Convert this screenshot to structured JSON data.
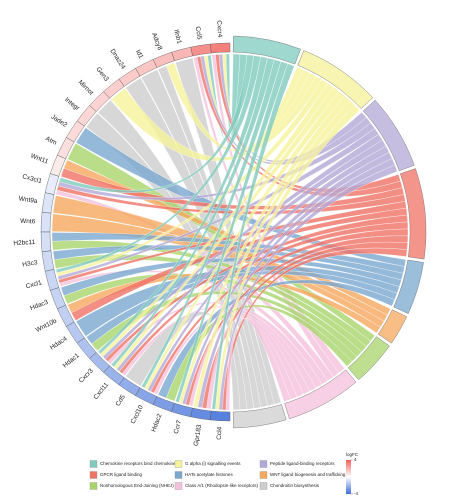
{
  "chart_data": {
    "type": "chord",
    "genes": [
      "Cxcr4",
      "Ccl5",
      "Ifnb1",
      "Adcy8",
      "Id1",
      "Dnaz24",
      "Gen3",
      "Mirnot",
      "Integr",
      "Jade2",
      "Atm",
      "Wnt11",
      "Cx3cl1",
      "Wnt9a",
      "Wnt6",
      "H2bc11",
      "H3c3",
      "Cxcl1",
      "Hdac3",
      "Wnt10b",
      "Hdac4",
      "Hdac1",
      "Cxcr3",
      "Cxcl11",
      "Cd5",
      "Cxcl10",
      "Hdac2",
      "Ccr7",
      "Gpr183",
      "Ccl4"
    ],
    "values": [
      3.2,
      2.8,
      1.8,
      1.6,
      1.4,
      1.3,
      1.2,
      1.1,
      1,
      0.9,
      0.8,
      0.5,
      -0.5,
      -0.7,
      -0.8,
      -0.9,
      -1,
      -1.1,
      -1.2,
      -1.3,
      -1.5,
      -1.7,
      -1.9,
      -2.1,
      -2.3,
      -2.5,
      -2.7,
      -2.9,
      -3.2,
      -3.5
    ],
    "pathways": [
      {
        "name": "Chemokine receptors bind chemokines",
        "color": "#7fcbbd"
      },
      {
        "name": "G alpha (i) signalling events",
        "color": "#f6f29a"
      },
      {
        "name": "Peptide ligand-binding receptors",
        "color": "#b3a8d6"
      },
      {
        "name": "GPCR ligand binding",
        "color": "#f07265"
      },
      {
        "name": "HATs acetylate histones",
        "color": "#7aa8cf"
      },
      {
        "name": "WNT ligand biogenesis and trafficking",
        "color": "#f6a85e"
      },
      {
        "name": "Nonhomologous End-Joining (NHEJ)",
        "color": "#a8d46a"
      },
      {
        "name": "Class A/1 (Rhodopsin-like receptors)",
        "color": "#f4c0dc"
      },
      {
        "name": "Chondroitin biosynthesis",
        "color": "#cdcdcd"
      }
    ],
    "links": [
      [
        0,
        0
      ],
      [
        0,
        1
      ],
      [
        0,
        2
      ],
      [
        0,
        3
      ],
      [
        0,
        7
      ],
      [
        1,
        0
      ],
      [
        1,
        1
      ],
      [
        1,
        2
      ],
      [
        1,
        3
      ],
      [
        1,
        7
      ],
      [
        2,
        8
      ],
      [
        3,
        1
      ],
      [
        3,
        8
      ],
      [
        4,
        8
      ],
      [
        5,
        8
      ],
      [
        6,
        1
      ],
      [
        7,
        8
      ],
      [
        8,
        8
      ],
      [
        9,
        4
      ],
      [
        10,
        6
      ],
      [
        11,
        5
      ],
      [
        11,
        3
      ],
      [
        12,
        0
      ],
      [
        12,
        2
      ],
      [
        12,
        3
      ],
      [
        12,
        7
      ],
      [
        13,
        5
      ],
      [
        14,
        5
      ],
      [
        15,
        4
      ],
      [
        15,
        6
      ],
      [
        16,
        4
      ],
      [
        16,
        6
      ],
      [
        17,
        0
      ],
      [
        17,
        1
      ],
      [
        17,
        2
      ],
      [
        17,
        3
      ],
      [
        17,
        7
      ],
      [
        18,
        4
      ],
      [
        18,
        6
      ],
      [
        19,
        5
      ],
      [
        19,
        3
      ],
      [
        20,
        4
      ],
      [
        21,
        4
      ],
      [
        21,
        6
      ],
      [
        22,
        0
      ],
      [
        22,
        1
      ],
      [
        22,
        2
      ],
      [
        22,
        3
      ],
      [
        22,
        7
      ],
      [
        23,
        0
      ],
      [
        23,
        1
      ],
      [
        23,
        2
      ],
      [
        23,
        3
      ],
      [
        23,
        7
      ],
      [
        24,
        8
      ],
      [
        25,
        0
      ],
      [
        25,
        1
      ],
      [
        25,
        2
      ],
      [
        25,
        3
      ],
      [
        25,
        7
      ],
      [
        26,
        4
      ],
      [
        26,
        6
      ],
      [
        27,
        0
      ],
      [
        27,
        1
      ],
      [
        27,
        2
      ],
      [
        27,
        3
      ],
      [
        27,
        7
      ],
      [
        28,
        1
      ],
      [
        28,
        2
      ],
      [
        28,
        3
      ],
      [
        28,
        7
      ],
      [
        29,
        0
      ],
      [
        29,
        1
      ],
      [
        29,
        2
      ],
      [
        29,
        3
      ],
      [
        29,
        7
      ]
    ],
    "color_scale": {
      "label": "logFC",
      "lim": [
        -4,
        4
      ],
      "ticks": [
        4,
        -4
      ],
      "colors": [
        "#3f6fd8",
        "#ffffff",
        "#f0605a"
      ]
    }
  }
}
